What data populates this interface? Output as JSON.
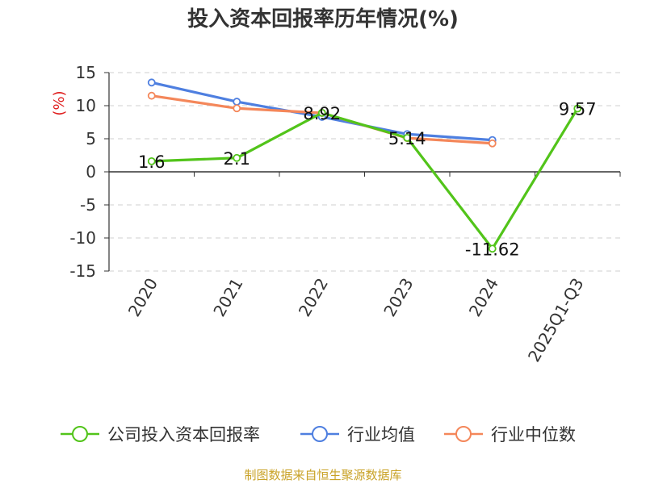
{
  "chart_data": {
    "type": "line",
    "title": "投入资本回报率历年情况(%)",
    "ylabel": "(%)",
    "categories": [
      "2020",
      "2021",
      "2022",
      "2023",
      "2024",
      "2025Q1-Q3"
    ],
    "ylim": [
      -15,
      15
    ],
    "yticks": [
      15,
      10,
      5,
      0,
      -5,
      -10,
      -15
    ],
    "grid": true,
    "legend_position": "bottom",
    "series": [
      {
        "name": "公司投入资本回报率",
        "color": "#52c41a",
        "values": [
          1.6,
          2.1,
          8.92,
          5.14,
          -11.62,
          9.57
        ],
        "labels": [
          "1.6",
          "2.1",
          "8.92",
          "5.14",
          "-11.62",
          "9.57"
        ]
      },
      {
        "name": "行业均值",
        "color": "#4e7fe0",
        "values": [
          13.5,
          10.6,
          8.3,
          5.7,
          4.8,
          null
        ]
      },
      {
        "name": "行业中位数",
        "color": "#f4875a",
        "values": [
          11.5,
          9.6,
          8.9,
          5.1,
          4.3,
          null
        ]
      }
    ],
    "source": "制图数据来自恒生聚源数据库"
  }
}
